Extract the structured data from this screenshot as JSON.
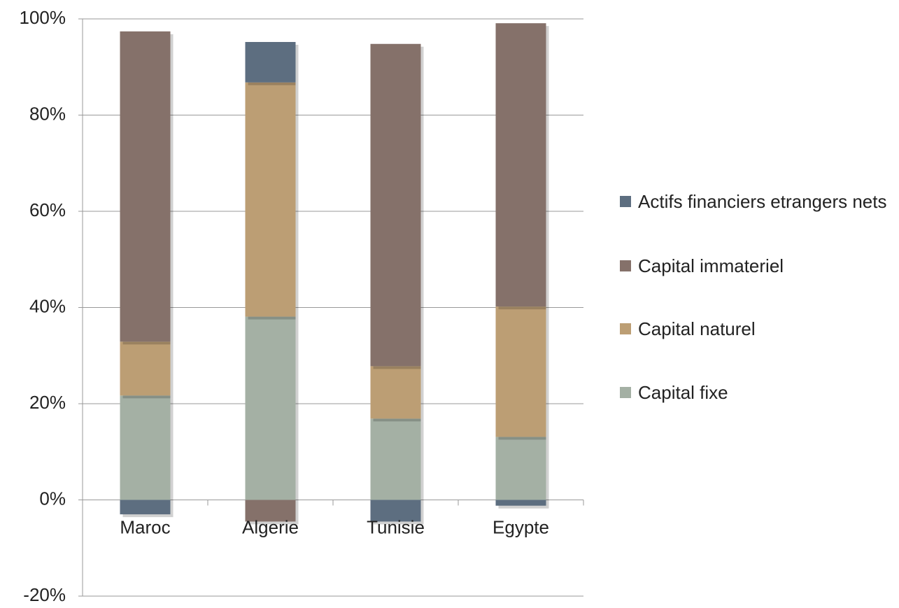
{
  "chart_data": {
    "type": "stacked-bar",
    "categories": [
      "Maroc",
      "Algerie",
      "Tunisie",
      "Egypte"
    ],
    "series": [
      {
        "name": "Capital fixe",
        "color": "#a4b0a4",
        "values": [
          21.7,
          38.1,
          16.9,
          13.1
        ]
      },
      {
        "name": "Capital naturel",
        "color": "#bc9e74",
        "values": [
          11.2,
          48.7,
          10.9,
          27.1
        ]
      },
      {
        "name": "Capital immateriel",
        "color": "#85716a",
        "values": [
          64.5,
          -4.5,
          67,
          58.9
        ]
      },
      {
        "name": "Actifs financiers etrangers nets",
        "color": "#5d6e80",
        "values": [
          -3,
          8.4,
          -4.5,
          -1.2
        ]
      }
    ],
    "ylim": [
      -20,
      100
    ],
    "yticks": [
      {
        "value": -20,
        "label": "-20%"
      },
      {
        "value": 0,
        "label": "0%"
      },
      {
        "value": 20,
        "label": "20%"
      },
      {
        "value": 40,
        "label": "40%"
      },
      {
        "value": 60,
        "label": "60%"
      },
      {
        "value": 80,
        "label": "80%"
      },
      {
        "value": 100,
        "label": "100%"
      }
    ],
    "grid": true
  }
}
